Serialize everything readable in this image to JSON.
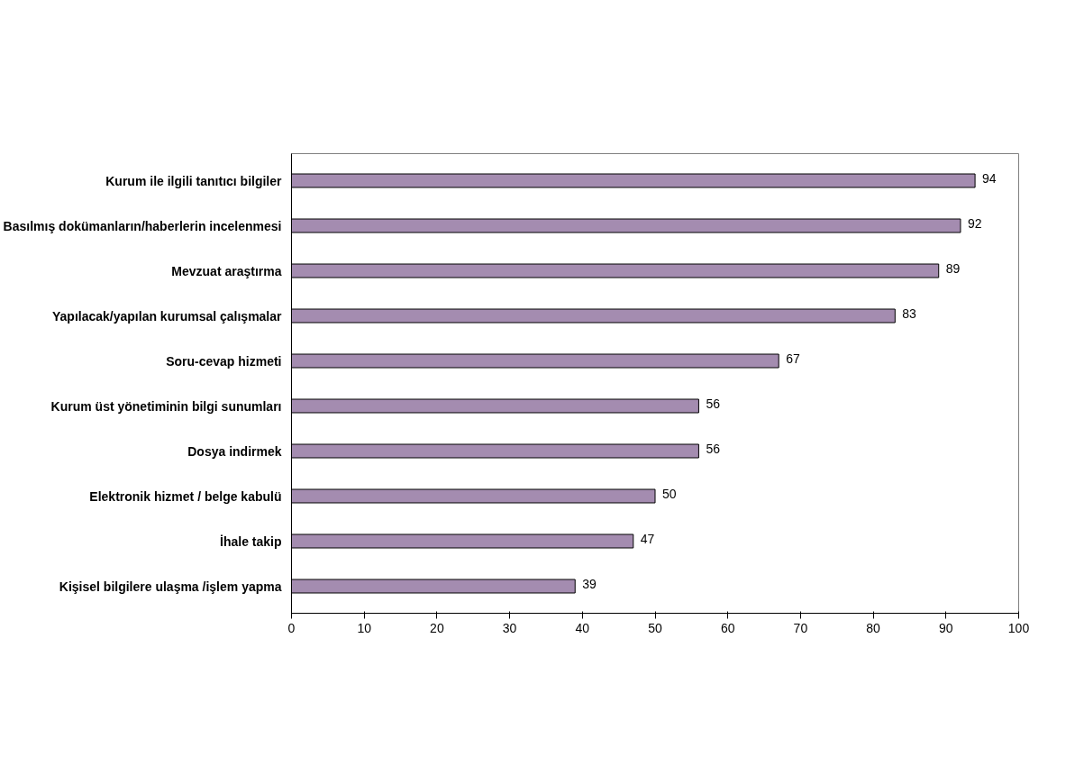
{
  "chart_data": {
    "type": "bar",
    "orientation": "horizontal",
    "categories": [
      "Kurum ile ilgili tanıtıcı bilgiler",
      "Basılmış dokümanların/haberlerin incelenmesi",
      "Mevzuat araştırma",
      "Yapılacak/yapılan kurumsal çalışmalar",
      "Soru-cevap hizmeti",
      "Kurum üst yönetiminin bilgi sunumları",
      "Dosya indirmek",
      "Elektronik hizmet / belge kabulü",
      "İhale takip",
      "Kişisel bilgilere ulaşma /işlem yapma"
    ],
    "values": [
      94,
      92,
      89,
      83,
      67,
      56,
      56,
      50,
      47,
      39
    ],
    "color": "#a48cb0",
    "xlim": [
      0,
      100
    ],
    "xticks": [
      0,
      10,
      20,
      30,
      40,
      50,
      60,
      70,
      80,
      90,
      100
    ],
    "data_labels": true,
    "grid": false
  }
}
